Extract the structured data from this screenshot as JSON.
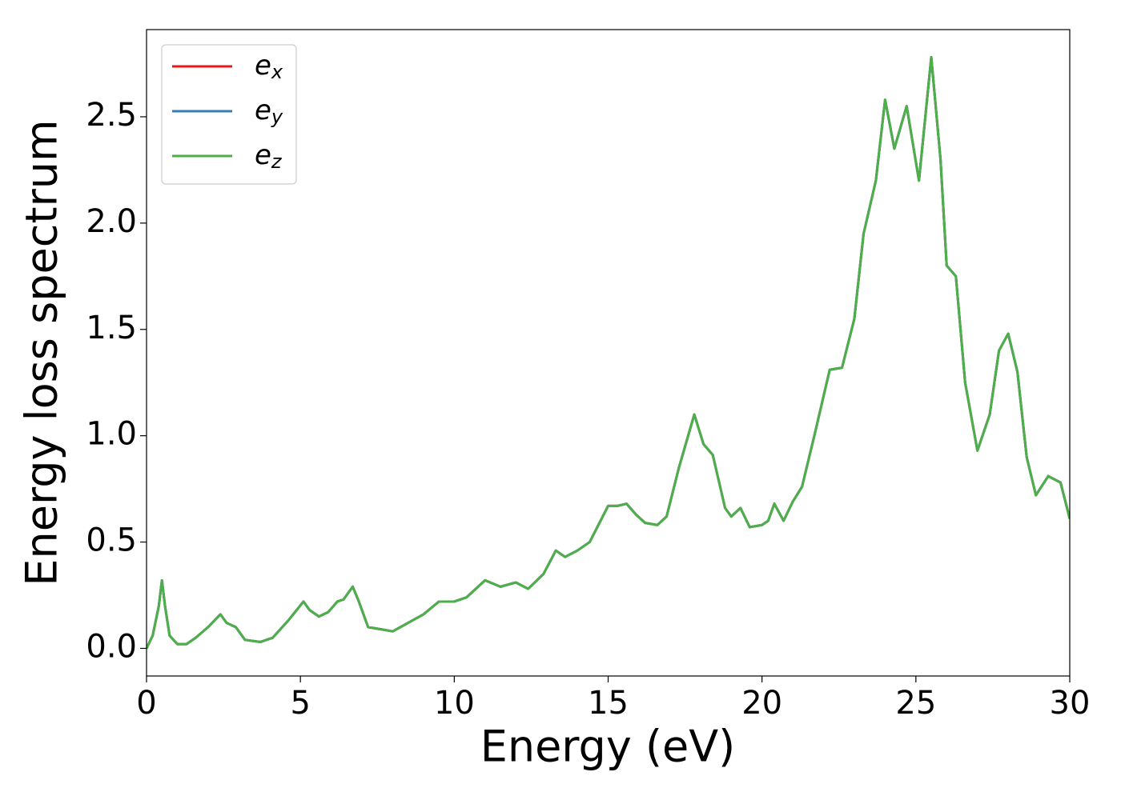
{
  "chart_data": {
    "type": "line",
    "xlabel": "Energy (eV)",
    "ylabel": "Energy loss spectrum",
    "x": [
      0,
      0.2,
      0.4,
      0.5,
      0.6,
      0.75,
      1.0,
      1.3,
      1.6,
      2.0,
      2.4,
      2.6,
      2.9,
      3.2,
      3.7,
      4.1,
      4.6,
      5.1,
      5.3,
      5.6,
      5.9,
      6.2,
      6.4,
      6.7,
      6.9,
      7.2,
      7.6,
      8.0,
      8.5,
      9.0,
      9.5,
      10.0,
      10.4,
      11.0,
      11.5,
      12.0,
      12.4,
      12.9,
      13.3,
      13.6,
      14.0,
      14.4,
      15.0,
      15.3,
      15.6,
      15.9,
      16.2,
      16.6,
      16.9,
      17.3,
      17.8,
      18.1,
      18.4,
      18.8,
      19.0,
      19.3,
      19.6,
      20.0,
      20.2,
      20.4,
      20.7,
      21.0,
      21.3,
      21.7,
      22.2,
      22.6,
      23.0,
      23.3,
      23.7,
      24.0,
      24.3,
      24.7,
      25.1,
      25.5,
      25.8,
      26.0,
      26.3,
      26.6,
      27.0,
      27.4,
      27.7,
      28.0,
      28.3,
      28.6,
      28.9,
      29.3,
      29.7,
      30.0
    ],
    "series": [
      {
        "name": "e_x",
        "color": "#e41a1c",
        "values": [
          0.0,
          0.06,
          0.2,
          0.32,
          0.2,
          0.06,
          0.02,
          0.02,
          0.05,
          0.1,
          0.16,
          0.12,
          0.1,
          0.04,
          0.03,
          0.05,
          0.13,
          0.22,
          0.18,
          0.15,
          0.17,
          0.22,
          0.23,
          0.29,
          0.22,
          0.1,
          0.09,
          0.08,
          0.12,
          0.16,
          0.22,
          0.22,
          0.24,
          0.32,
          0.29,
          0.31,
          0.28,
          0.35,
          0.46,
          0.43,
          0.46,
          0.5,
          0.67,
          0.67,
          0.68,
          0.63,
          0.59,
          0.58,
          0.62,
          0.85,
          1.1,
          0.96,
          0.91,
          0.66,
          0.62,
          0.66,
          0.57,
          0.58,
          0.6,
          0.68,
          0.6,
          0.69,
          0.76,
          1.0,
          1.31,
          1.32,
          1.55,
          1.95,
          2.2,
          2.58,
          2.35,
          2.55,
          2.2,
          2.78,
          2.3,
          1.8,
          1.75,
          1.25,
          0.93,
          1.1,
          1.4,
          1.48,
          1.3,
          0.9,
          0.72,
          0.81,
          0.78,
          0.61
        ]
      },
      {
        "name": "e_y",
        "color": "#377eb8",
        "values": [
          0.0,
          0.06,
          0.2,
          0.32,
          0.2,
          0.06,
          0.02,
          0.02,
          0.05,
          0.1,
          0.16,
          0.12,
          0.1,
          0.04,
          0.03,
          0.05,
          0.13,
          0.22,
          0.18,
          0.15,
          0.17,
          0.22,
          0.23,
          0.29,
          0.22,
          0.1,
          0.09,
          0.08,
          0.12,
          0.16,
          0.22,
          0.22,
          0.24,
          0.32,
          0.29,
          0.31,
          0.28,
          0.35,
          0.46,
          0.43,
          0.46,
          0.5,
          0.67,
          0.67,
          0.68,
          0.63,
          0.59,
          0.58,
          0.62,
          0.85,
          1.1,
          0.96,
          0.91,
          0.66,
          0.62,
          0.66,
          0.57,
          0.58,
          0.6,
          0.68,
          0.6,
          0.69,
          0.76,
          1.0,
          1.31,
          1.32,
          1.55,
          1.95,
          2.2,
          2.58,
          2.35,
          2.55,
          2.2,
          2.78,
          2.3,
          1.8,
          1.75,
          1.25,
          0.93,
          1.1,
          1.4,
          1.48,
          1.3,
          0.9,
          0.72,
          0.81,
          0.78,
          0.61
        ]
      },
      {
        "name": "e_z",
        "color": "#4daf4a",
        "values": [
          0.0,
          0.06,
          0.2,
          0.32,
          0.2,
          0.06,
          0.02,
          0.02,
          0.05,
          0.1,
          0.16,
          0.12,
          0.1,
          0.04,
          0.03,
          0.05,
          0.13,
          0.22,
          0.18,
          0.15,
          0.17,
          0.22,
          0.23,
          0.29,
          0.22,
          0.1,
          0.09,
          0.08,
          0.12,
          0.16,
          0.22,
          0.22,
          0.24,
          0.32,
          0.29,
          0.31,
          0.28,
          0.35,
          0.46,
          0.43,
          0.46,
          0.5,
          0.67,
          0.67,
          0.68,
          0.63,
          0.59,
          0.58,
          0.62,
          0.85,
          1.1,
          0.96,
          0.91,
          0.66,
          0.62,
          0.66,
          0.57,
          0.58,
          0.6,
          0.68,
          0.6,
          0.69,
          0.76,
          1.0,
          1.31,
          1.32,
          1.55,
          1.95,
          2.2,
          2.58,
          2.35,
          2.55,
          2.2,
          2.78,
          2.3,
          1.8,
          1.75,
          1.25,
          0.93,
          1.1,
          1.4,
          1.48,
          1.3,
          0.9,
          0.72,
          0.81,
          0.78,
          0.61
        ]
      }
    ],
    "xlim": [
      0,
      30
    ],
    "xticks": [
      0,
      5,
      10,
      15,
      20,
      25,
      30
    ],
    "ylim": [
      -0.13,
      2.91
    ],
    "yticks": [
      {
        "value": 0,
        "label": "0.0"
      },
      {
        "value": 0.5,
        "label": "0.5"
      },
      {
        "value": 1,
        "label": "1.0"
      },
      {
        "value": 1.5,
        "label": "1.5"
      },
      {
        "value": 2,
        "label": "2.0"
      },
      {
        "value": 2.5,
        "label": "2.5"
      }
    ],
    "legend": "upper left",
    "grid": false
  }
}
